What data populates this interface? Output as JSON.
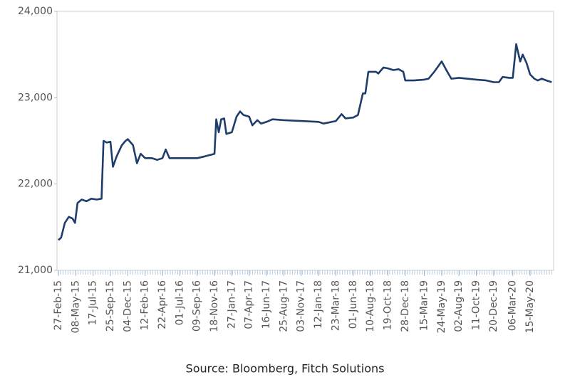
{
  "chart_data": {
    "type": "line",
    "source": "Source: Bloomberg, Fitch Solutions",
    "x": [
      "27-Feb-15",
      "10-Mar-15",
      "25-Mar-15",
      "10-Apr-15",
      "25-Apr-15",
      "05-May-15",
      "15-May-15",
      "01-Jun-15",
      "20-Jun-15",
      "10-Jul-15",
      "01-Aug-15",
      "20-Aug-15",
      "28-Aug-15",
      "10-Sep-15",
      "25-Sep-15",
      "05-Oct-15",
      "20-Oct-15",
      "10-Nov-15",
      "25-Nov-15",
      "04-Dec-15",
      "25-Dec-15",
      "10-Jan-16",
      "25-Jan-16",
      "12-Feb-16",
      "10-Mar-16",
      "01-Apr-16",
      "22-Apr-16",
      "05-May-16",
      "20-May-16",
      "01-Jul-16",
      "09-Sep-16",
      "10-Oct-16",
      "18-Nov-16",
      "25-Nov-16",
      "05-Dec-16",
      "15-Dec-16",
      "27-Dec-16",
      "05-Jan-17",
      "27-Jan-17",
      "15-Feb-17",
      "01-Mar-17",
      "15-Mar-17",
      "07-Apr-17",
      "20-Apr-17",
      "10-May-17",
      "25-May-17",
      "16-Jun-17",
      "10-Jul-17",
      "25-Aug-17",
      "03-Nov-17",
      "12-Jan-18",
      "01-Feb-18",
      "23-Mar-18",
      "15-Apr-18",
      "01-May-18",
      "01-Jun-18",
      "20-Jun-18",
      "10-Jul-18",
      "20-Jul-18",
      "01-Aug-18",
      "10-Aug-18",
      "01-Sep-18",
      "10-Sep-18",
      "01-Oct-18",
      "19-Oct-18",
      "10-Nov-18",
      "01-Dec-18",
      "20-Dec-18",
      "28-Dec-18",
      "01-Feb-19",
      "15-Mar-19",
      "01-Apr-19",
      "24-Apr-19",
      "24-May-19",
      "10-Jun-19",
      "02-Jul-19",
      "02-Aug-19",
      "11-Oct-19",
      "20-Nov-19",
      "20-Dec-19",
      "10-Jan-20",
      "25-Jan-20",
      "20-Feb-20",
      "06-Mar-20",
      "20-Mar-20",
      "05-Apr-20",
      "15-Apr-20",
      "01-May-20",
      "15-May-20",
      "01-Jun-20",
      "15-Jun-20",
      "01-Jul-20",
      "20-Jul-20",
      "10-Aug-20"
    ],
    "series": [
      {
        "color": "#1f3d6b",
        "values": [
          21350,
          21380,
          21550,
          21620,
          21600,
          21550,
          21780,
          21820,
          21800,
          21830,
          21820,
          21830,
          22500,
          22480,
          22490,
          22200,
          22320,
          22450,
          22500,
          22520,
          22450,
          22240,
          22350,
          22300,
          22300,
          22280,
          22300,
          22400,
          22300,
          22300,
          22300,
          22320,
          22350,
          22750,
          22600,
          22750,
          22760,
          22580,
          22600,
          22780,
          22840,
          22800,
          22780,
          22680,
          22740,
          22700,
          22720,
          22750,
          22740,
          22730,
          22720,
          22700,
          22730,
          22810,
          22760,
          22770,
          22800,
          23050,
          23050,
          23300,
          23300,
          23300,
          23280,
          23350,
          23340,
          23320,
          23330,
          23300,
          23200,
          23200,
          23210,
          23220,
          23300,
          23420,
          23330,
          23220,
          23230,
          23210,
          23200,
          23180,
          23180,
          23240,
          23230,
          23230,
          23620,
          23420,
          23500,
          23400,
          23270,
          23220,
          23200,
          23220,
          23200,
          23180
        ]
      }
    ],
    "xlim": [
      "27-Feb-15",
      "15-Aug-20"
    ],
    "xticks": [
      "27-Feb-15",
      "08-May-15",
      "17-Jul-15",
      "25-Sep-15",
      "04-Dec-15",
      "12-Feb-16",
      "22-Apr-16",
      "01-Jul-16",
      "09-Sep-16",
      "18-Nov-16",
      "27-Jan-17",
      "07-Apr-17",
      "16-Jun-17",
      "25-Aug-17",
      "03-Nov-17",
      "12-Jan-18",
      "23-Mar-18",
      "01-Jun-18",
      "10-Aug-18",
      "19-Oct-18",
      "28-Dec-18",
      "15-Mar-19",
      "24-May-19",
      "02-Aug-19",
      "11-Oct-19",
      "20-Dec-19",
      "06-Mar-20",
      "15-May-20"
    ],
    "ylim": [
      21000,
      24000
    ],
    "yticks": [
      {
        "value": 21000,
        "label": "21,000"
      },
      {
        "value": 22000,
        "label": "22,000"
      },
      {
        "value": 23000,
        "label": "23,000"
      },
      {
        "value": 24000,
        "label": "24,000"
      }
    ]
  }
}
